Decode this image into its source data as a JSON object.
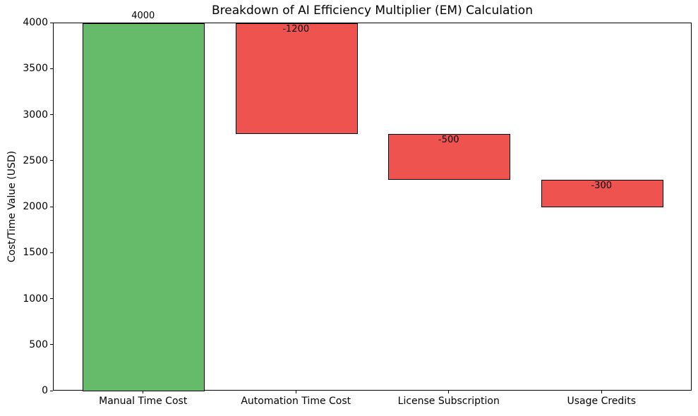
{
  "chart_data": {
    "type": "bar",
    "subtype": "waterfall",
    "title": "Breakdown of AI Efficiency Multiplier (EM) Calculation",
    "xlabel": "",
    "ylabel": "Cost/Time Value (USD)",
    "categories": [
      "Manual Time Cost",
      "Automation Time Cost",
      "License Subscription",
      "Usage Credits"
    ],
    "values": [
      4000,
      -1200,
      -500,
      -300
    ],
    "bar_segments": [
      [
        0,
        4000
      ],
      [
        2800,
        4000
      ],
      [
        2300,
        2800
      ],
      [
        2000,
        2300
      ]
    ],
    "bar_labels": [
      "4000",
      "-1200",
      "-500",
      "-300"
    ],
    "yticks": [
      0,
      500,
      1000,
      1500,
      2000,
      2500,
      3000,
      3500,
      4000
    ],
    "ylim": [
      0,
      4000
    ],
    "grid": false,
    "legend": null,
    "colors": {
      "positive": "#66bb6a",
      "negative": "#ef5350",
      "edge": "#000000",
      "background": "#ffffff",
      "text": "#000000"
    }
  }
}
